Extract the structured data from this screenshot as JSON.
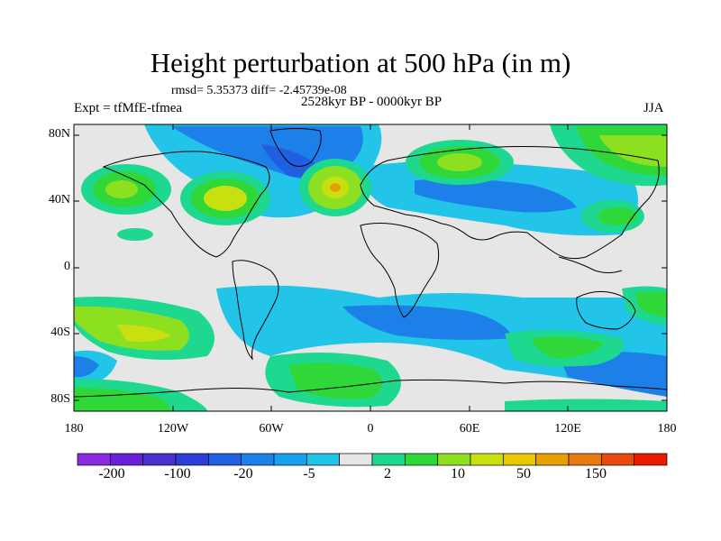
{
  "title": "Height perturbation at 500 hPa (in m)",
  "stats_line": "rmsd= 5.35373 diff= -2.45739e-08",
  "experiment_label": "Expt = tfMfE-tfmea",
  "period_label": "2528kyr BP - 0000kyr BP",
  "season_label": "JJA",
  "lat_ticks": [
    "80N",
    "40N",
    "0",
    "40S",
    "80S"
  ],
  "lon_ticks": [
    "180",
    "120W",
    "60W",
    "0",
    "60E",
    "120E",
    "180"
  ],
  "colorbar": {
    "labels": [
      "-200",
      "-100",
      "-20",
      "-5",
      "2",
      "10",
      "50",
      "150"
    ],
    "colors": [
      "#8a2be2",
      "#6a1fd8",
      "#4b2fd0",
      "#2e3fd6",
      "#1f5fe0",
      "#1c80e8",
      "#15a0f0",
      "#22c4e8",
      "#e6e6e6",
      "#1fd890",
      "#2fd838",
      "#8ce020",
      "#c8e010",
      "#e8c800",
      "#e8a000",
      "#e87a10",
      "#e84a10",
      "#e81a00"
    ]
  },
  "map_colors": {
    "neutral": "#e6e6e6",
    "lightblue": "#22c4e8",
    "blue": "#1c80e8",
    "darkblue": "#1f5fe0",
    "teal": "#1fd890",
    "green": "#2fd838",
    "lime": "#8ce020",
    "yellow": "#c8e010",
    "orange": "#e8a000"
  }
}
